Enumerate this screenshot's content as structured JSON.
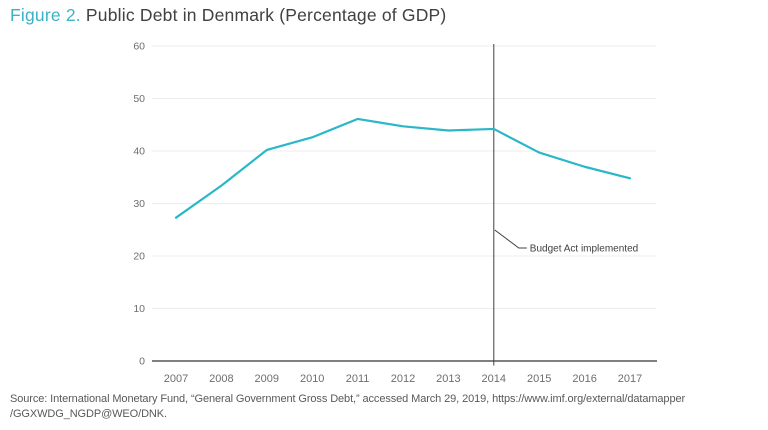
{
  "title": {
    "prefix": "Figure 2.",
    "text": " Public Debt in Denmark (Percentage of GDP)"
  },
  "source": {
    "line1": "Source: International Monetary Fund, “General Government Gross Debt,” accessed March 29, 2019, https://www.imf.org/external/datamapper",
    "line2": "/GGXWDG_NGDP@WEO/DNK."
  },
  "colors": {
    "accent_teal": "#3bb3c4",
    "line": "#2ab7c6",
    "grid": "#ececec",
    "axis": "#55565a",
    "tick_label": "#6d6e71",
    "text_dark": "#414042",
    "background": "#ffffff"
  },
  "chart_data": {
    "type": "line",
    "title": "Public Debt in Denmark (Percentage of GDP)",
    "x": [
      "2007",
      "2008",
      "2009",
      "2010",
      "2011",
      "2012",
      "2013",
      "2014",
      "2015",
      "2016",
      "2017"
    ],
    "series": [
      {
        "name": "Public debt (% of GDP)",
        "values": [
          27.3,
          33.4,
          40.2,
          42.6,
          46.1,
          44.7,
          43.9,
          44.2,
          39.7,
          37.0,
          34.8
        ]
      }
    ],
    "xlabel": "",
    "ylabel": "",
    "ylim": [
      0,
      60
    ],
    "yticks": [
      0,
      10,
      20,
      30,
      40,
      50,
      60
    ],
    "grid": "horizontal gridlines at each y tick",
    "legend": "none",
    "annotation": {
      "text": "Budget Act implemented",
      "x": "2014",
      "marker": "vertical line spanning plot height"
    }
  }
}
